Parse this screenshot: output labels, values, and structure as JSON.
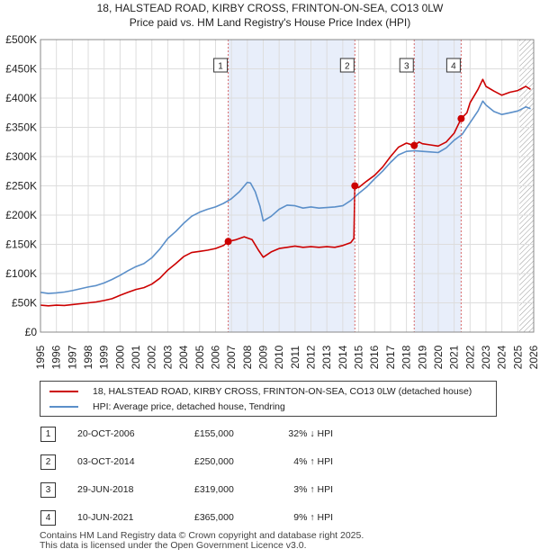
{
  "chart_data": {
    "type": "line",
    "title": "18, HALSTEAD ROAD, KIRBY CROSS, FRINTON-ON-SEA, CO13 0LW",
    "subtitle": "Price paid vs. HM Land Registry's House Price Index (HPI)",
    "x_range": [
      1995,
      2026
    ],
    "ylim": [
      0,
      500000
    ],
    "y_ticks": [
      0,
      50000,
      100000,
      150000,
      200000,
      250000,
      300000,
      350000,
      400000,
      450000,
      500000
    ],
    "y_tick_labels": [
      "£0",
      "£50K",
      "£100K",
      "£150K",
      "£200K",
      "£250K",
      "£300K",
      "£350K",
      "£400K",
      "£450K",
      "£500K"
    ],
    "x_ticks": [
      1995,
      1996,
      1997,
      1998,
      1999,
      2000,
      2001,
      2002,
      2003,
      2004,
      2005,
      2006,
      2007,
      2008,
      2009,
      2010,
      2011,
      2012,
      2013,
      2014,
      2015,
      2016,
      2017,
      2018,
      2019,
      2020,
      2021,
      2022,
      2023,
      2024,
      2025,
      2026
    ],
    "grid": true,
    "forecast_start": 2025.1,
    "series": [
      {
        "name": "18, HALSTEAD ROAD, KIRBY CROSS, FRINTON-ON-SEA, CO13 0LW (detached house)",
        "color": "#cc0000",
        "points": [
          [
            1995.0,
            46000
          ],
          [
            1995.5,
            45000
          ],
          [
            1996.0,
            46000
          ],
          [
            1996.5,
            45500
          ],
          [
            1997.0,
            47000
          ],
          [
            1997.5,
            48500
          ],
          [
            1998.0,
            50000
          ],
          [
            1998.5,
            51500
          ],
          [
            1999.0,
            54000
          ],
          [
            1999.5,
            57000
          ],
          [
            2000.0,
            63000
          ],
          [
            2000.5,
            68000
          ],
          [
            2001.0,
            73000
          ],
          [
            2001.5,
            76000
          ],
          [
            2002.0,
            82000
          ],
          [
            2002.5,
            92000
          ],
          [
            2003.0,
            106000
          ],
          [
            2003.5,
            117000
          ],
          [
            2004.0,
            129000
          ],
          [
            2004.5,
            136000
          ],
          [
            2005.0,
            138000
          ],
          [
            2005.5,
            140000
          ],
          [
            2006.0,
            143000
          ],
          [
            2006.5,
            148000
          ],
          [
            2006.8,
            155000
          ],
          [
            2007.3,
            158000
          ],
          [
            2007.8,
            163000
          ],
          [
            2008.3,
            158000
          ],
          [
            2008.7,
            140000
          ],
          [
            2009.0,
            128000
          ],
          [
            2009.5,
            137000
          ],
          [
            2010.0,
            143000
          ],
          [
            2010.5,
            145000
          ],
          [
            2011.0,
            147000
          ],
          [
            2011.5,
            145000
          ],
          [
            2012.0,
            146000
          ],
          [
            2012.5,
            145000
          ],
          [
            2013.0,
            146000
          ],
          [
            2013.5,
            145000
          ],
          [
            2014.0,
            148000
          ],
          [
            2014.5,
            153000
          ],
          [
            2014.7,
            160000
          ],
          [
            2014.76,
            250000
          ],
          [
            2015.0,
            247000
          ],
          [
            2015.5,
            258000
          ],
          [
            2016.0,
            268000
          ],
          [
            2016.5,
            282000
          ],
          [
            2017.0,
            300000
          ],
          [
            2017.5,
            316000
          ],
          [
            2018.0,
            323000
          ],
          [
            2018.49,
            319000
          ],
          [
            2018.8,
            325000
          ],
          [
            2019.0,
            322000
          ],
          [
            2019.5,
            320000
          ],
          [
            2020.0,
            318000
          ],
          [
            2020.5,
            325000
          ],
          [
            2021.0,
            340000
          ],
          [
            2021.44,
            365000
          ],
          [
            2021.8,
            375000
          ],
          [
            2022.0,
            392000
          ],
          [
            2022.5,
            415000
          ],
          [
            2022.8,
            432000
          ],
          [
            2023.0,
            420000
          ],
          [
            2023.5,
            412000
          ],
          [
            2024.0,
            405000
          ],
          [
            2024.5,
            410000
          ],
          [
            2025.0,
            413000
          ],
          [
            2025.5,
            420000
          ],
          [
            2025.8,
            415000
          ]
        ]
      },
      {
        "name": "HPI: Average price, detached house, Tendring",
        "color": "#5b8fc9",
        "points": [
          [
            1995.0,
            68000
          ],
          [
            1995.5,
            66000
          ],
          [
            1996.0,
            67000
          ],
          [
            1996.5,
            68500
          ],
          [
            1997.0,
            71000
          ],
          [
            1997.5,
            74000
          ],
          [
            1998.0,
            77000
          ],
          [
            1998.5,
            79500
          ],
          [
            1999.0,
            84000
          ],
          [
            1999.5,
            90000
          ],
          [
            2000.0,
            97000
          ],
          [
            2000.5,
            105000
          ],
          [
            2001.0,
            112000
          ],
          [
            2001.5,
            117000
          ],
          [
            2002.0,
            127000
          ],
          [
            2002.5,
            142000
          ],
          [
            2003.0,
            160000
          ],
          [
            2003.5,
            172000
          ],
          [
            2004.0,
            186000
          ],
          [
            2004.5,
            198000
          ],
          [
            2005.0,
            205000
          ],
          [
            2005.5,
            210000
          ],
          [
            2006.0,
            214000
          ],
          [
            2006.5,
            220000
          ],
          [
            2007.0,
            228000
          ],
          [
            2007.5,
            240000
          ],
          [
            2008.0,
            256000
          ],
          [
            2008.2,
            255000
          ],
          [
            2008.5,
            240000
          ],
          [
            2008.8,
            215000
          ],
          [
            2009.0,
            190000
          ],
          [
            2009.5,
            198000
          ],
          [
            2010.0,
            210000
          ],
          [
            2010.5,
            217000
          ],
          [
            2011.0,
            216000
          ],
          [
            2011.5,
            212000
          ],
          [
            2012.0,
            214000
          ],
          [
            2012.5,
            212000
          ],
          [
            2013.0,
            213000
          ],
          [
            2013.5,
            214000
          ],
          [
            2014.0,
            216000
          ],
          [
            2014.5,
            225000
          ],
          [
            2015.0,
            237000
          ],
          [
            2015.5,
            248000
          ],
          [
            2016.0,
            262000
          ],
          [
            2016.5,
            275000
          ],
          [
            2017.0,
            290000
          ],
          [
            2017.5,
            303000
          ],
          [
            2018.0,
            309000
          ],
          [
            2018.5,
            310000
          ],
          [
            2019.0,
            309000
          ],
          [
            2019.5,
            308000
          ],
          [
            2020.0,
            307000
          ],
          [
            2020.5,
            315000
          ],
          [
            2021.0,
            328000
          ],
          [
            2021.5,
            338000
          ],
          [
            2022.0,
            358000
          ],
          [
            2022.5,
            378000
          ],
          [
            2022.8,
            395000
          ],
          [
            2023.0,
            388000
          ],
          [
            2023.5,
            377000
          ],
          [
            2024.0,
            372000
          ],
          [
            2024.5,
            375000
          ],
          [
            2025.0,
            378000
          ],
          [
            2025.5,
            385000
          ],
          [
            2025.8,
            382000
          ]
        ]
      }
    ],
    "sales": [
      {
        "label": "1",
        "x": 2006.8,
        "price": 155000
      },
      {
        "label": "2",
        "x": 2014.76,
        "price": 250000
      },
      {
        "label": "3",
        "x": 2018.49,
        "price": 319000
      },
      {
        "label": "4",
        "x": 2021.44,
        "price": 365000
      }
    ]
  },
  "legend": {
    "property_label": "18, HALSTEAD ROAD, KIRBY CROSS, FRINTON-ON-SEA, CO13 0LW (detached house)",
    "hpi_label": "HPI: Average price, detached house, Tendring"
  },
  "transactions": [
    {
      "num": "1",
      "date": "20-OCT-2006",
      "price": "£155,000",
      "hpi": "32% ↓ HPI"
    },
    {
      "num": "2",
      "date": "03-OCT-2014",
      "price": "£250,000",
      "hpi": "4% ↑ HPI"
    },
    {
      "num": "3",
      "date": "29-JUN-2018",
      "price": "£319,000",
      "hpi": "3% ↑ HPI"
    },
    {
      "num": "4",
      "date": "10-JUN-2021",
      "price": "£365,000",
      "hpi": "9% ↑ HPI"
    }
  ],
  "footer": {
    "line1": "Contains HM Land Registry data © Crown copyright and database right 2025.",
    "line2": "This data is licensed under the Open Government Licence v3.0."
  }
}
